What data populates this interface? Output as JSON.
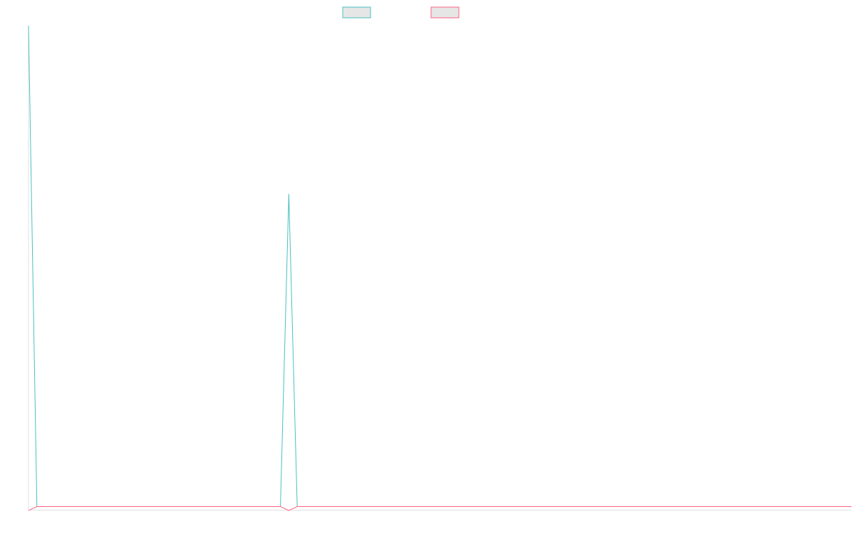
{
  "chart_data": {
    "type": "line",
    "title": "",
    "xlabel": "",
    "ylabel": "",
    "x": [
      0,
      1,
      2,
      3,
      4,
      5,
      6,
      7,
      8,
      9,
      10,
      11,
      12,
      13,
      14,
      15,
      16,
      17,
      18,
      19,
      20,
      21,
      22,
      23,
      24,
      25,
      26,
      27,
      28,
      29,
      30,
      31,
      32,
      33,
      34,
      35,
      36,
      37,
      38,
      39,
      40,
      41,
      42,
      43,
      44,
      45,
      46,
      47,
      48,
      49,
      50,
      51,
      52,
      53,
      54,
      55,
      56,
      57,
      58,
      59,
      60,
      61,
      62,
      63,
      64,
      65,
      66,
      67,
      68,
      69,
      70,
      71,
      72,
      73,
      74,
      75,
      76,
      77,
      78,
      79,
      80,
      81,
      82,
      83,
      84,
      85,
      86,
      87,
      88,
      89,
      90,
      91,
      92,
      93,
      94,
      95,
      96,
      97,
      98
    ],
    "ylim": [
      -0.8,
      100
    ],
    "grid": false,
    "legend_position": "top",
    "series": [
      {
        "color": "#4bc0c0",
        "fill": "#e6e6e6",
        "values": [
          100,
          0,
          0,
          0,
          0,
          0,
          0,
          0,
          0,
          0,
          0,
          0,
          0,
          0,
          0,
          0,
          0,
          0,
          0,
          0,
          0,
          0,
          0,
          0,
          0,
          0,
          0,
          0,
          0,
          0,
          0,
          65,
          0,
          0,
          0,
          0,
          0,
          0,
          0,
          0,
          0,
          0,
          0,
          0,
          0,
          0,
          0,
          0,
          0,
          0,
          0,
          0,
          0,
          0,
          0,
          0,
          0,
          0,
          0,
          0,
          0,
          0,
          0,
          0,
          0,
          0,
          0,
          0,
          0,
          0,
          0,
          0,
          0,
          0,
          0,
          0,
          0,
          0,
          0,
          0,
          0,
          0,
          0,
          0,
          0,
          0,
          0,
          0,
          0,
          0,
          0,
          0,
          0,
          0,
          0,
          0,
          0,
          0,
          0
        ]
      },
      {
        "color": "#ff6384",
        "fill": "#e6e6e6",
        "values": [
          -0.8,
          0,
          0,
          0,
          0,
          0,
          0,
          0,
          0,
          0,
          0,
          0,
          0,
          0,
          0,
          0,
          0,
          0,
          0,
          0,
          0,
          0,
          0,
          0,
          0,
          0,
          0,
          0,
          0,
          0,
          0,
          -0.8,
          0,
          0,
          0,
          0,
          0,
          0,
          0,
          0,
          0,
          0,
          0,
          0,
          0,
          0,
          0,
          0,
          0,
          0,
          0,
          0,
          0,
          0,
          0,
          0,
          0,
          0,
          0,
          0,
          0,
          0,
          0,
          0,
          0,
          0,
          0,
          0,
          0,
          0,
          0,
          0,
          0,
          0,
          0,
          0,
          0,
          0,
          0,
          0,
          0,
          0,
          0,
          0,
          0,
          0,
          0,
          0,
          0,
          0,
          0,
          0,
          0,
          0,
          0,
          0,
          0,
          0,
          0
        ]
      }
    ]
  }
}
